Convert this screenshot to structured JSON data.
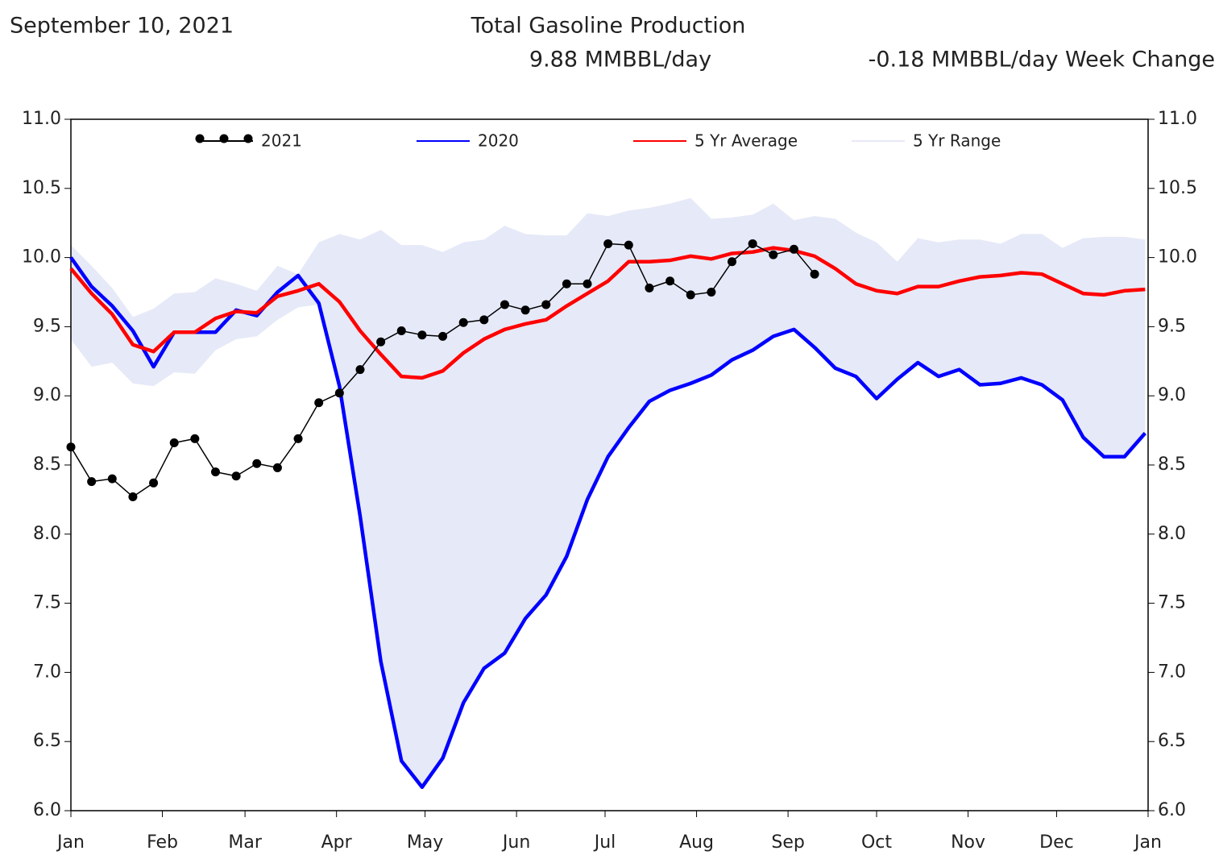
{
  "header": {
    "date": "September 10, 2021",
    "value": "9.88 MMBBL/day",
    "change": "-0.18 MMBBL/day Week Change"
  },
  "chart_data": {
    "type": "line",
    "title": "Total Gasoline Production",
    "x": [
      0,
      7,
      14,
      21,
      28,
      35,
      42,
      49,
      56,
      63,
      70,
      77,
      84,
      91,
      98,
      105,
      112,
      119,
      126,
      133,
      140,
      147,
      154,
      161,
      168,
      175,
      182,
      189,
      196,
      203,
      210,
      217,
      224,
      231,
      238,
      245,
      252,
      259,
      266,
      273,
      280,
      287,
      294,
      301,
      308,
      315,
      322,
      329,
      336,
      343,
      350,
      357,
      364
    ],
    "xlim": [
      0,
      365
    ],
    "xticks": [
      {
        "value": 0,
        "label": "Jan"
      },
      {
        "value": 31,
        "label": "Feb"
      },
      {
        "value": 59,
        "label": "Mar"
      },
      {
        "value": 90,
        "label": "Apr"
      },
      {
        "value": 120,
        "label": "May"
      },
      {
        "value": 151,
        "label": "Jun"
      },
      {
        "value": 181,
        "label": "Jul"
      },
      {
        "value": 212,
        "label": "Aug"
      },
      {
        "value": 243,
        "label": "Sep"
      },
      {
        "value": 273,
        "label": "Oct"
      },
      {
        "value": 304,
        "label": "Nov"
      },
      {
        "value": 334,
        "label": "Dec"
      },
      {
        "value": 365,
        "label": "Jan"
      }
    ],
    "ylim": [
      6,
      11
    ],
    "yticks": [
      {
        "value": 6,
        "label": "6.0"
      },
      {
        "value": 6.5,
        "label": "6.5"
      },
      {
        "value": 7,
        "label": "7.0"
      },
      {
        "value": 7.5,
        "label": "7.5"
      },
      {
        "value": 8,
        "label": "8.0"
      },
      {
        "value": 8.5,
        "label": "8.5"
      },
      {
        "value": 9,
        "label": "9.0"
      },
      {
        "value": 9.5,
        "label": "9.5"
      },
      {
        "value": 10,
        "label": "10.0"
      },
      {
        "value": 10.5,
        "label": "10.5"
      },
      {
        "value": 11,
        "label": "11.0"
      }
    ],
    "series": [
      {
        "name": "2021",
        "color": "#000000",
        "markers": true,
        "values": [
          8.63,
          8.38,
          8.4,
          8.27,
          8.37,
          8.66,
          8.69,
          8.45,
          8.42,
          8.51,
          8.48,
          8.69,
          8.95,
          9.02,
          9.19,
          9.39,
          9.47,
          9.44,
          9.43,
          9.53,
          9.55,
          9.66,
          9.62,
          9.66,
          9.81,
          9.81,
          10.1,
          10.09,
          9.78,
          9.83,
          9.73,
          9.75,
          9.97,
          10.1,
          10.02,
          10.06,
          9.88,
          null,
          null,
          null,
          null,
          null,
          null,
          null,
          null,
          null,
          null,
          null,
          null,
          null,
          null,
          null,
          null
        ]
      },
      {
        "name": "2020",
        "color": "#0000ff",
        "values": [
          10.0,
          9.79,
          9.65,
          9.47,
          9.21,
          9.46,
          9.46,
          9.46,
          9.62,
          9.58,
          9.75,
          9.87,
          9.67,
          9.07,
          8.13,
          7.08,
          6.36,
          6.17,
          6.38,
          6.78,
          7.03,
          7.14,
          7.39,
          7.56,
          7.84,
          8.25,
          8.56,
          8.77,
          8.96,
          9.04,
          9.09,
          9.15,
          9.26,
          9.33,
          9.43,
          9.48,
          9.35,
          9.2,
          9.14,
          8.98,
          9.12,
          9.24,
          9.14,
          9.19,
          9.08,
          9.09,
          9.13,
          9.08,
          8.97,
          8.7,
          8.56,
          8.56,
          8.73
        ]
      },
      {
        "name": "5 Yr Average",
        "color": "#ff0000",
        "values": [
          9.92,
          9.74,
          9.59,
          9.37,
          9.32,
          9.46,
          9.46,
          9.56,
          9.61,
          9.6,
          9.72,
          9.76,
          9.81,
          9.68,
          9.47,
          9.3,
          9.14,
          9.13,
          9.18,
          9.31,
          9.41,
          9.48,
          9.52,
          9.55,
          9.65,
          9.74,
          9.83,
          9.97,
          9.97,
          9.98,
          10.01,
          9.99,
          10.03,
          10.04,
          10.07,
          10.05,
          10.01,
          9.92,
          9.81,
          9.76,
          9.74,
          9.79,
          9.79,
          9.83,
          9.86,
          9.87,
          9.89,
          9.88,
          9.81,
          9.74,
          9.73,
          9.76,
          9.77
        ]
      },
      {
        "name": "5 Yr Range",
        "color": "#e6e9f7",
        "upper": [
          10.09,
          9.94,
          9.78,
          9.57,
          9.63,
          9.74,
          9.75,
          9.85,
          9.81,
          9.76,
          9.94,
          9.88,
          10.11,
          10.17,
          10.13,
          10.2,
          10.09,
          10.09,
          10.04,
          10.11,
          10.13,
          10.23,
          10.17,
          10.16,
          10.16,
          10.32,
          10.3,
          10.34,
          10.36,
          10.39,
          10.43,
          10.28,
          10.29,
          10.31,
          10.39,
          10.27,
          10.3,
          10.28,
          10.18,
          10.11,
          9.97,
          10.14,
          10.11,
          10.13,
          10.13,
          10.1,
          10.17,
          10.17,
          10.07,
          10.14,
          10.15,
          10.15,
          10.13
        ],
        "lower": [
          9.41,
          9.21,
          9.24,
          9.09,
          9.07,
          9.17,
          9.16,
          9.33,
          9.41,
          9.43,
          9.55,
          9.64,
          9.66,
          9.07,
          8.13,
          7.08,
          6.36,
          6.17,
          6.38,
          6.78,
          7.03,
          7.14,
          7.39,
          7.56,
          7.84,
          8.25,
          8.56,
          8.77,
          8.96,
          9.04,
          9.09,
          9.15,
          9.26,
          9.33,
          9.43,
          9.48,
          9.35,
          9.2,
          9.14,
          8.98,
          9.12,
          9.24,
          9.14,
          9.19,
          9.08,
          9.09,
          9.13,
          9.08,
          8.97,
          8.7,
          8.56,
          8.56,
          8.73
        ]
      }
    ]
  }
}
